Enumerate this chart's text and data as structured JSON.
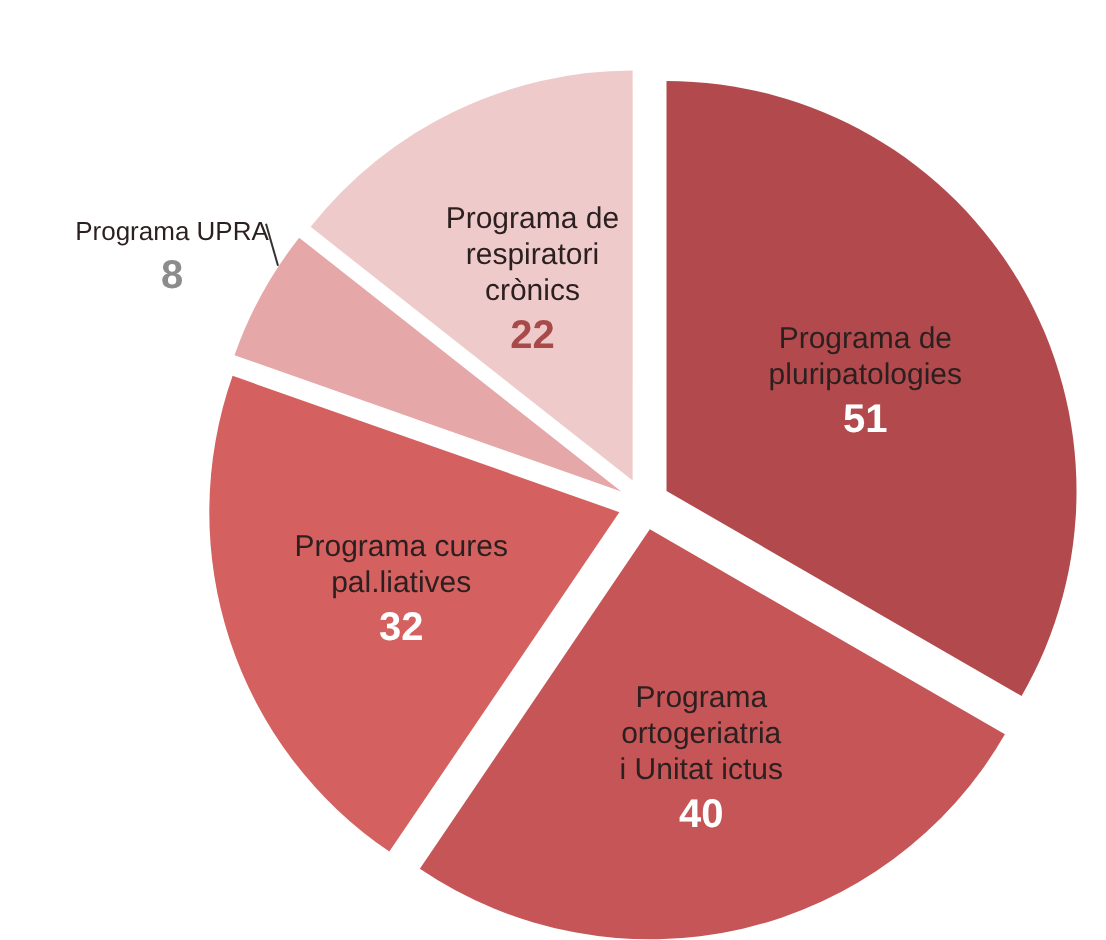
{
  "chart_data": {
    "type": "pie",
    "categories": [
      "Programa de pluripatologies",
      "Programa ortogeriatria i Unitat ictus",
      "Programa cures pal.liatives",
      "Programa UPRA",
      "Programa de respiratori crònics"
    ],
    "values": [
      51,
      40,
      32,
      8,
      22
    ],
    "colors": [
      "#b24a4d",
      "#c55556",
      "#d4605f",
      "#e5a7a7",
      "#efcaca"
    ],
    "data_labels": true
  }
}
